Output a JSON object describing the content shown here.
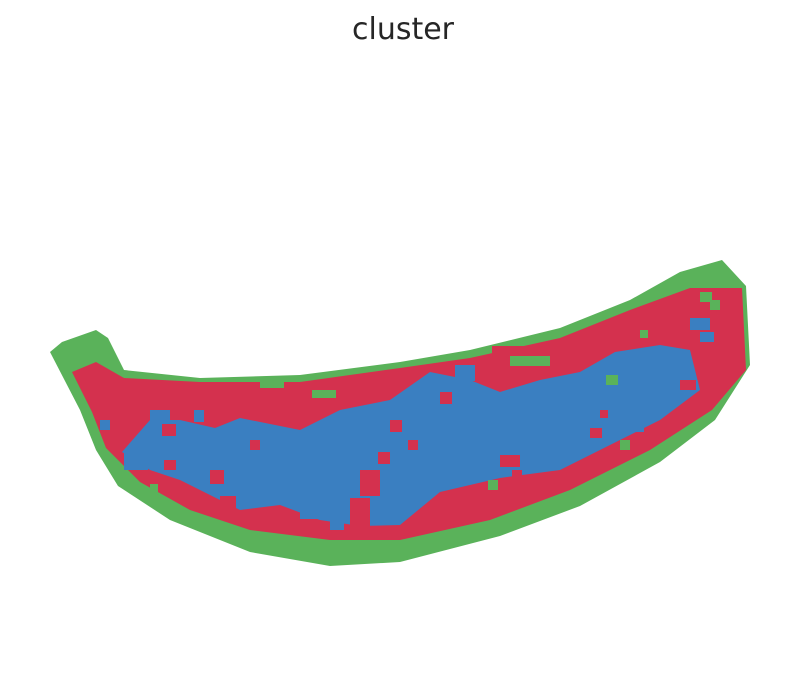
{
  "chart_data": {
    "type": "heatmap",
    "title": "cluster",
    "xlabel": "",
    "ylabel": "",
    "axes_visible": false,
    "grid": false,
    "legend": "none",
    "palette": {
      "0": "#5ab25a",
      "1": "#d4314e",
      "2": "#3a7fc1"
    },
    "regions": [
      {
        "name": "outer-band",
        "cluster": 0
      },
      {
        "name": "middle-band",
        "cluster": 1
      },
      {
        "name": "core-band",
        "cluster": 2
      }
    ]
  }
}
